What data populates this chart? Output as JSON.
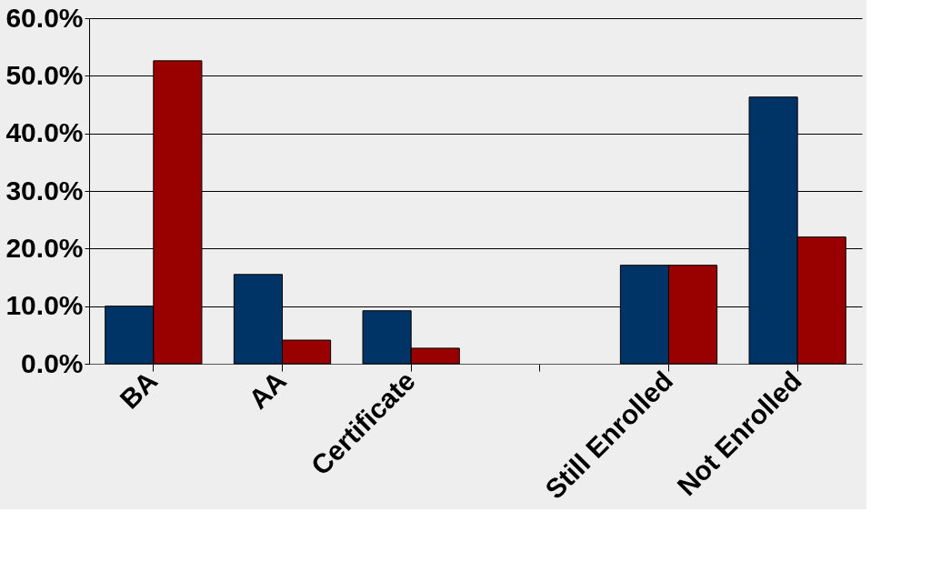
{
  "chart_data": {
    "type": "bar",
    "categories": [
      "BA",
      "AA",
      "Certificate",
      null,
      "Still Enrolled",
      "Not Enrolled"
    ],
    "series": [
      {
        "color": "#003366",
        "values": [
          10.0,
          15.5,
          9.2,
          null,
          17.1,
          46.3
        ]
      },
      {
        "color": "#990000",
        "values": [
          52.6,
          4.1,
          2.7,
          null,
          17.1,
          22.0
        ]
      }
    ],
    "ylim": [
      0,
      60
    ],
    "yticks": [
      {
        "value": 0,
        "label": "0.0%"
      },
      {
        "value": 10,
        "label": "10.0%"
      },
      {
        "value": 20,
        "label": "20.0%"
      },
      {
        "value": 30,
        "label": "30.0%"
      },
      {
        "value": 40,
        "label": "40.0%"
      },
      {
        "value": 50,
        "label": "50.0%"
      },
      {
        "value": 60,
        "label": "60.0%"
      }
    ],
    "grid": "y"
  }
}
